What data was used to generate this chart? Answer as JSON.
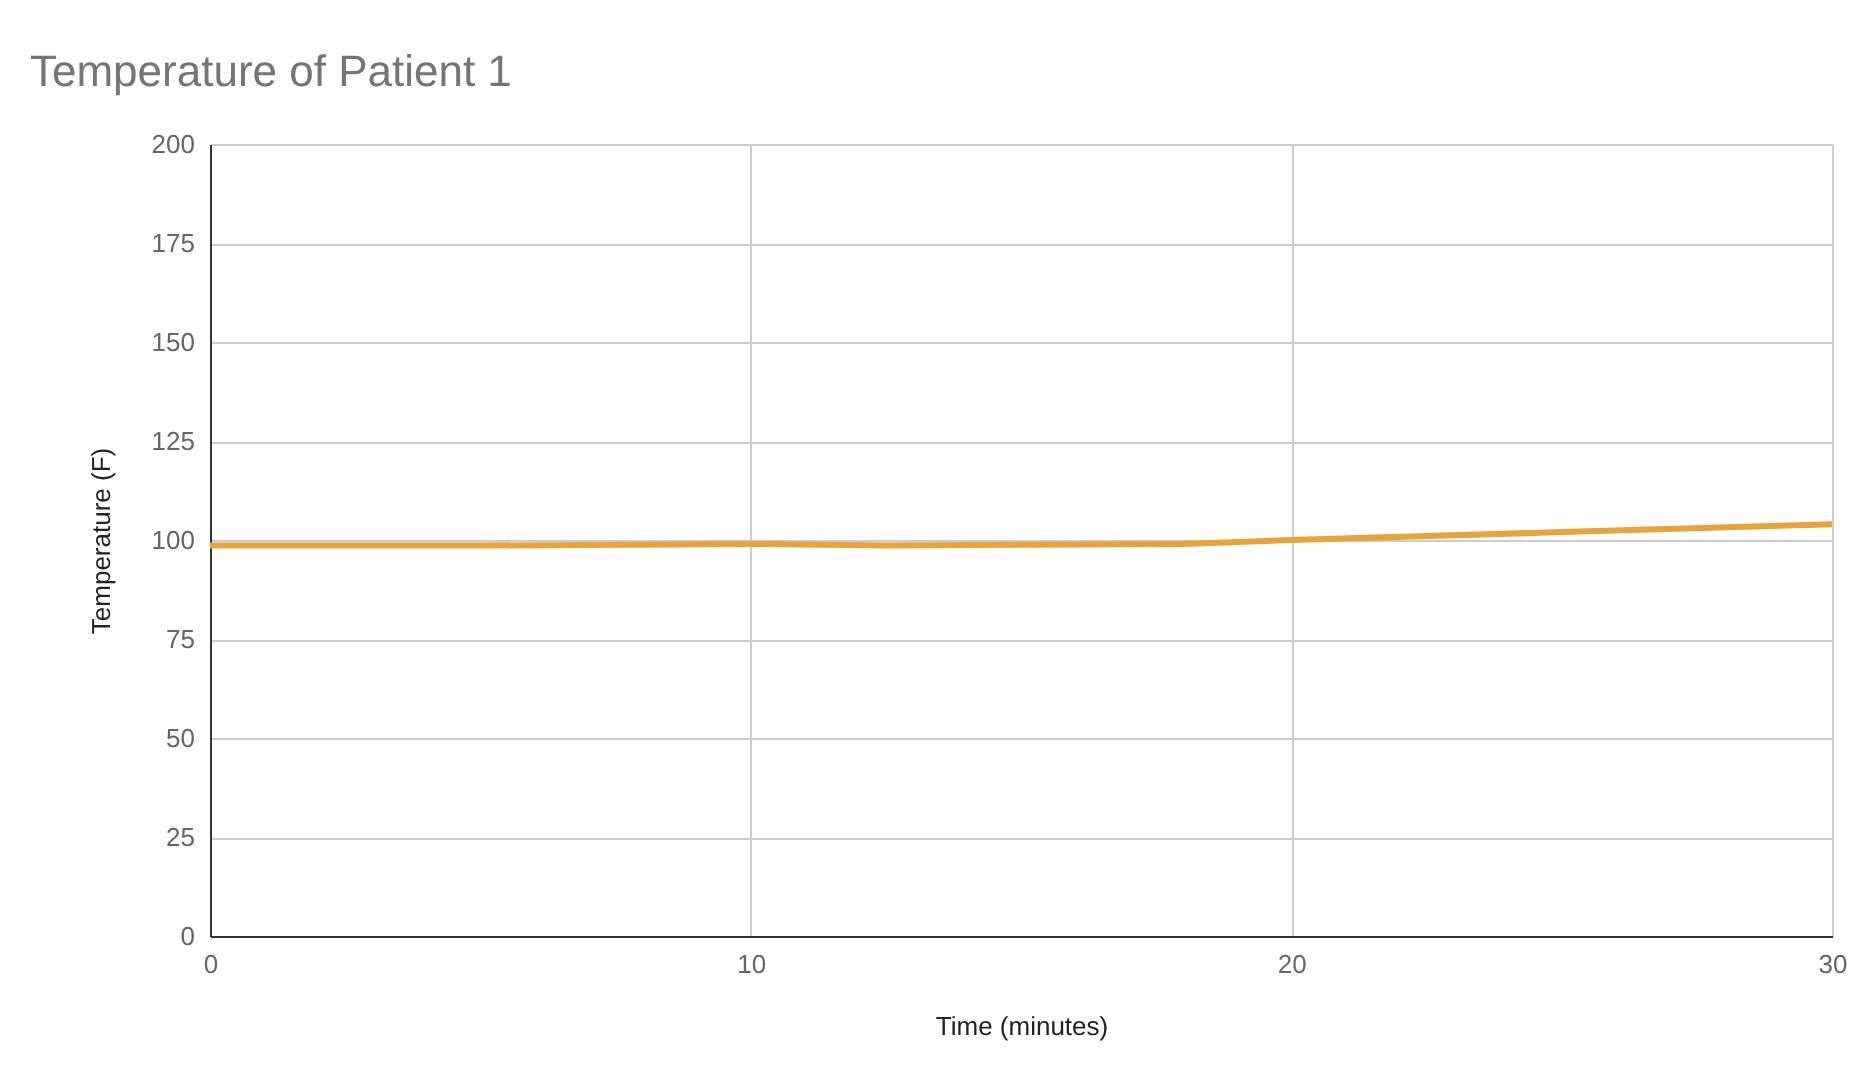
{
  "chart_data": {
    "type": "line",
    "title": "Temperature of Patient 1",
    "xlabel": "Time (minutes)",
    "ylabel": "Temperature (F)",
    "x": [
      0,
      5,
      10,
      12.5,
      18,
      20,
      25,
      30
    ],
    "series": [
      {
        "color": "#e8a33b",
        "values": [
          98.6,
          98.6,
          99,
          98.6,
          99,
          100,
          102,
          104
        ]
      }
    ],
    "xlim": [
      0,
      30
    ],
    "xticks": [
      0,
      10,
      20,
      30
    ],
    "ylim": [
      0,
      200
    ],
    "yticks": [
      0,
      25,
      50,
      75,
      100,
      125,
      150,
      175,
      200
    ],
    "grid": true,
    "marker": "none",
    "line_style": "solid"
  }
}
